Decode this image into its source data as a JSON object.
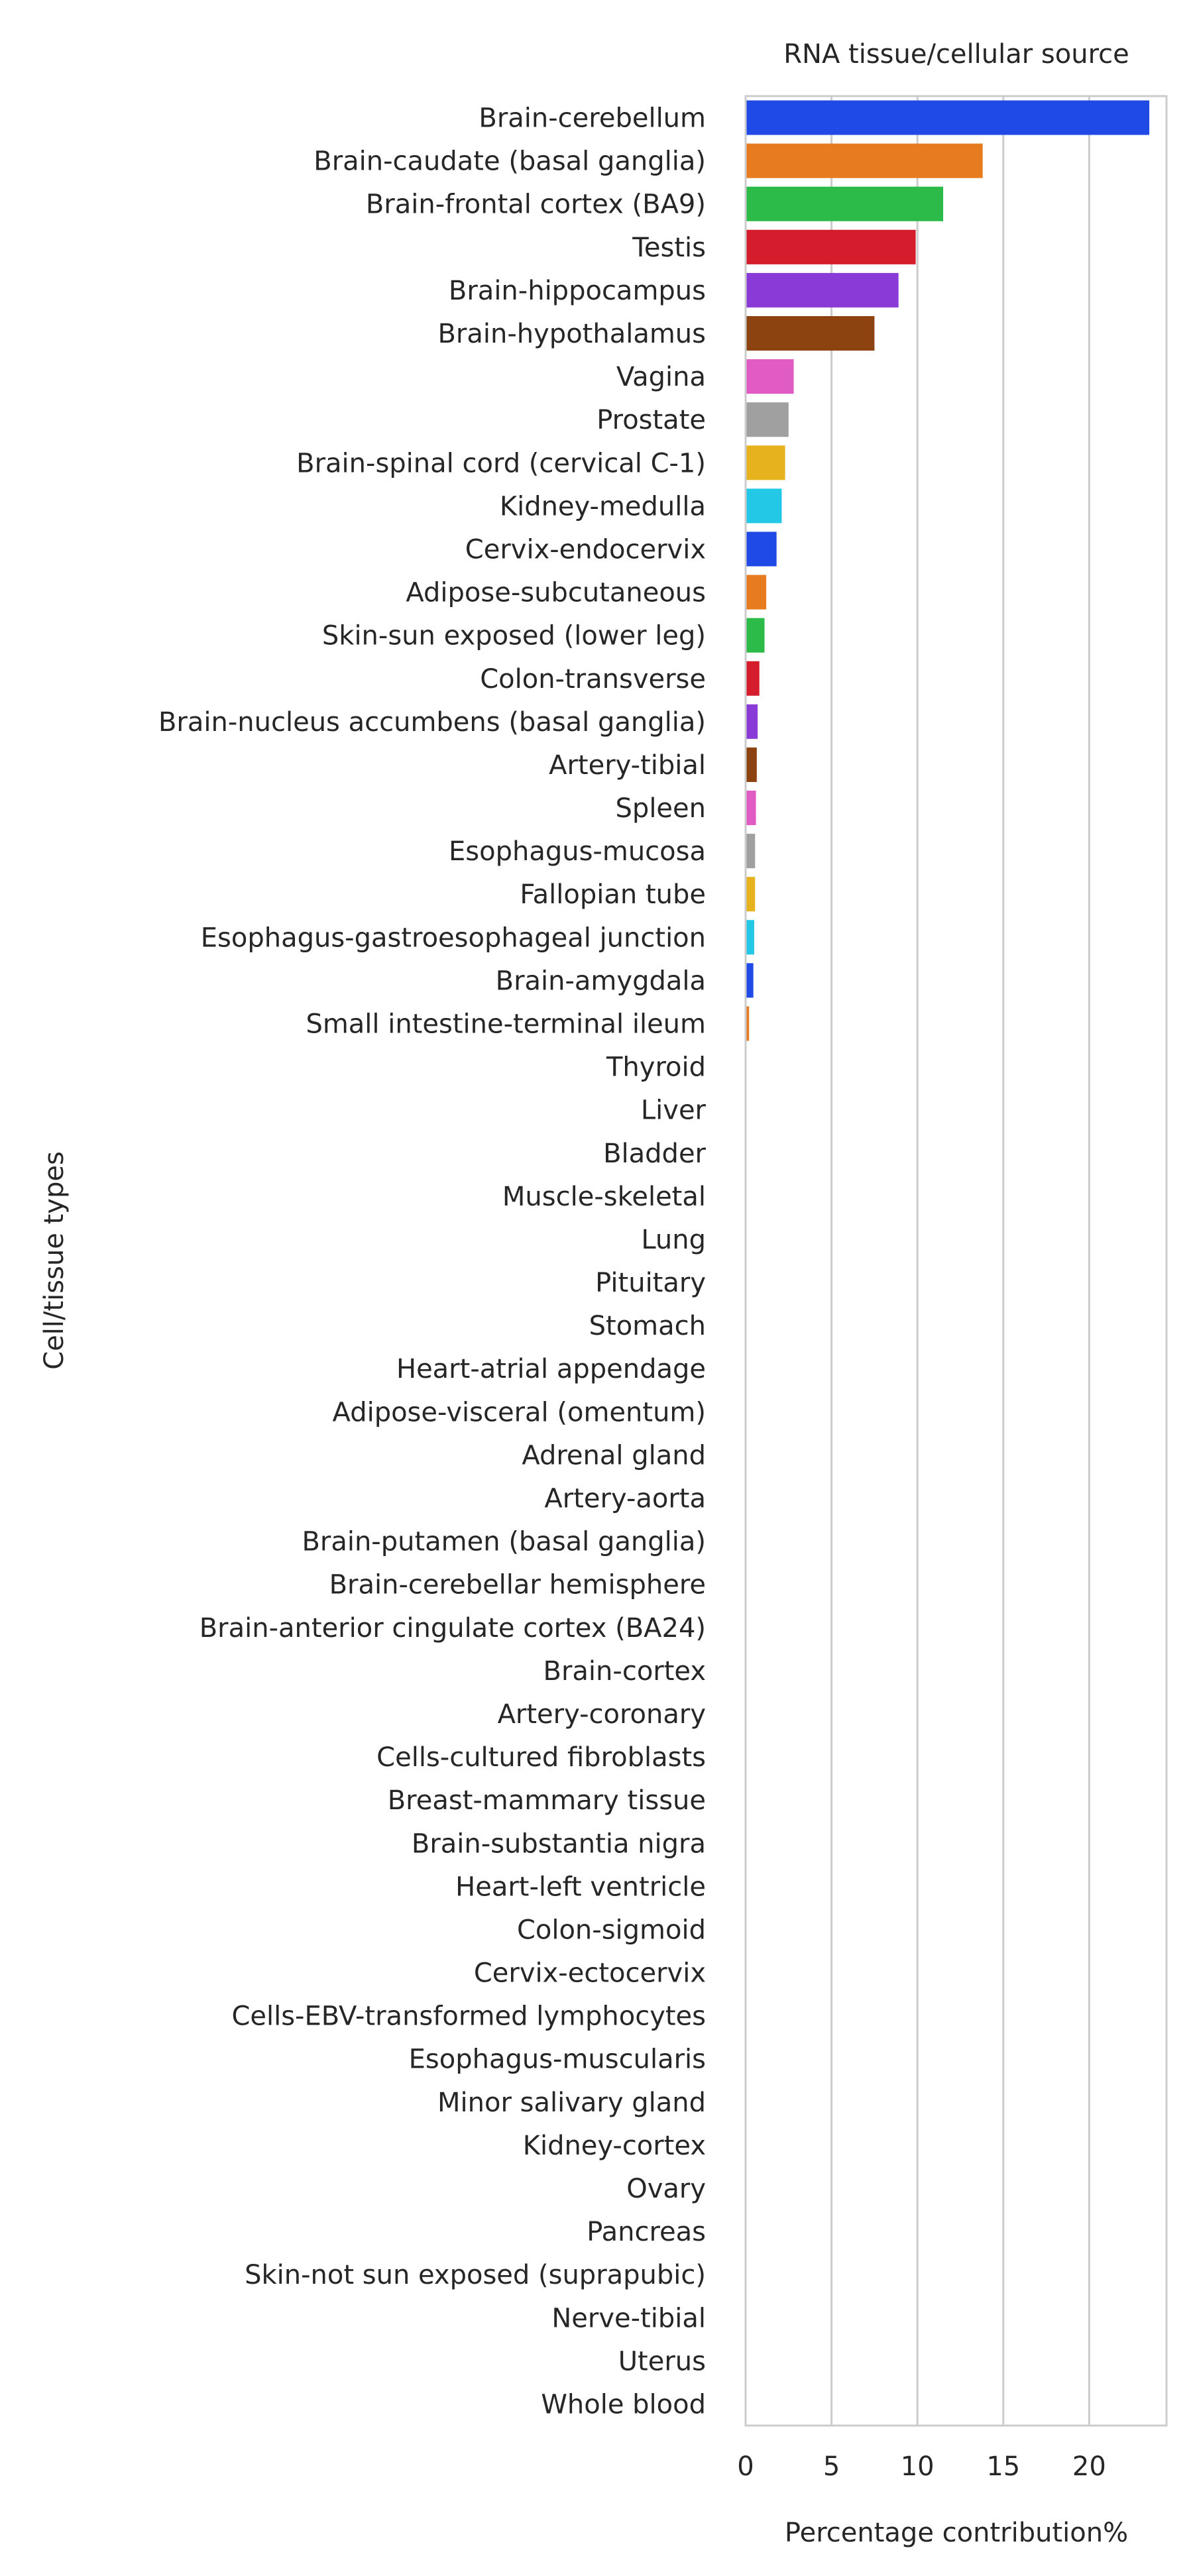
{
  "chart_data": {
    "type": "bar",
    "orientation": "horizontal",
    "title": "RNA tissue/cellular source",
    "xlabel": "Percentage contribution%",
    "ylabel": "Cell/tissue types",
    "xlim": [
      0,
      24.5
    ],
    "xticks": [
      0,
      5,
      10,
      15,
      20
    ],
    "grid": "vertical",
    "categories": [
      "Brain-cerebellum",
      "Brain-caudate (basal ganglia)",
      "Brain-frontal cortex (BA9)",
      "Testis",
      "Brain-hippocampus",
      "Brain-hypothalamus",
      "Vagina",
      "Prostate",
      "Brain-spinal cord (cervical C-1)",
      "Kidney-medulla",
      "Cervix-endocervix",
      "Adipose-subcutaneous",
      "Skin-sun exposed (lower leg)",
      "Colon-transverse",
      "Brain-nucleus accumbens (basal ganglia)",
      "Artery-tibial",
      "Spleen",
      "Esophagus-mucosa",
      "Fallopian tube",
      "Esophagus-gastroesophageal junction",
      "Brain-amygdala",
      "Small intestine-terminal ileum",
      "Thyroid",
      "Liver",
      "Bladder",
      "Muscle-skeletal",
      "Lung",
      "Pituitary",
      "Stomach",
      "Heart-atrial appendage",
      "Adipose-visceral (omentum)",
      "Adrenal gland",
      "Artery-aorta",
      "Brain-putamen (basal ganglia)",
      "Brain-cerebellar hemisphere",
      "Brain-anterior cingulate cortex (BA24)",
      "Brain-cortex",
      "Artery-coronary",
      "Cells-cultured fibroblasts",
      "Breast-mammary tissue",
      "Brain-substantia nigra",
      "Heart-left ventricle",
      "Colon-sigmoid",
      "Cervix-ectocervix",
      "Cells-EBV-transformed lymphocytes",
      "Esophagus-muscularis",
      "Minor salivary gland",
      "Kidney-cortex",
      "Ovary",
      "Pancreas",
      "Skin-not sun exposed (suprapubic)",
      "Nerve-tibial",
      "Uterus",
      "Whole blood"
    ],
    "values": [
      23.5,
      13.8,
      11.5,
      9.9,
      8.9,
      7.5,
      2.8,
      2.5,
      2.3,
      2.1,
      1.8,
      1.2,
      1.1,
      0.8,
      0.7,
      0.65,
      0.6,
      0.55,
      0.55,
      0.5,
      0.45,
      0.2,
      0,
      0,
      0,
      0,
      0,
      0,
      0,
      0,
      0,
      0,
      0,
      0,
      0,
      0,
      0,
      0,
      0,
      0,
      0,
      0,
      0,
      0,
      0,
      0,
      0,
      0,
      0,
      0,
      0,
      0,
      0,
      0
    ],
    "palette": [
      "#1f4ae6",
      "#e67c1f",
      "#2cba49",
      "#d41c2c",
      "#8a3ad6",
      "#8c4310",
      "#e05cc4",
      "#a0a0a0",
      "#e6b31f",
      "#22c8e6"
    ]
  }
}
